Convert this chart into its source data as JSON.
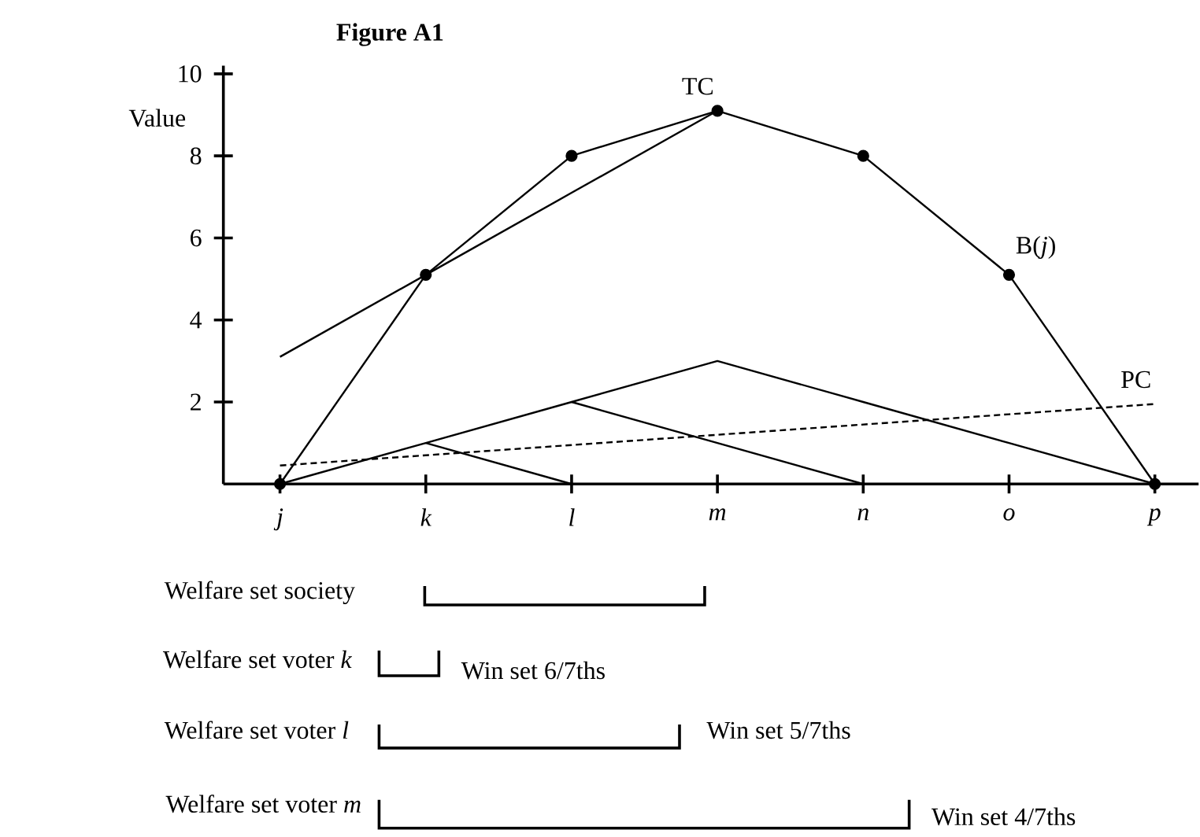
{
  "chart_data": {
    "type": "line",
    "title": "Figure A1",
    "ylabel": "Value",
    "categories": [
      "j",
      "k",
      "l",
      "m",
      "n",
      "o",
      "p"
    ],
    "ylim": [
      0,
      10.2
    ],
    "yticks": [
      2,
      4,
      6,
      8,
      10
    ],
    "series": [
      {
        "name": "B(*j*)",
        "color": "#000000",
        "values": [
          0,
          5.1,
          8,
          9.1,
          8,
          5.1,
          0
        ],
        "marker": "circle"
      },
      {
        "name": "TC",
        "color": "#000000",
        "values": [
          3.1,
          5.1,
          7.1,
          9.1,
          null,
          null,
          null
        ]
      },
      {
        "name": "PC",
        "color": "#000000",
        "values": [
          0.45,
          0.7,
          0.95,
          1.2,
          1.45,
          1.7,
          1.95
        ],
        "line_style": "dashed"
      },
      {
        "color": "#000000",
        "values": [
          0,
          1,
          2,
          3,
          2,
          1,
          0
        ]
      },
      {
        "color": "#000000",
        "values": [
          null,
          null,
          2,
          1,
          0,
          null,
          null
        ]
      },
      {
        "color": "#000000",
        "values": [
          null,
          1,
          0,
          null,
          null,
          null,
          null
        ]
      }
    ],
    "annotations": [
      "Welfare set society",
      "Welfare set voter *k*",
      "Win set 6/7ths",
      "Welfare set voter *l*",
      "Win set 5/7ths",
      "Welfare set voter *m*",
      "Win set 4/7ths"
    ]
  }
}
